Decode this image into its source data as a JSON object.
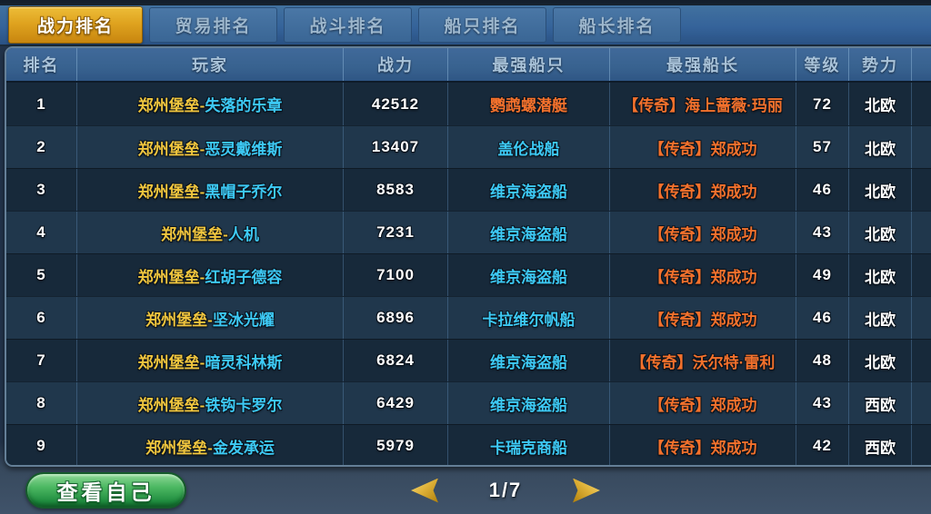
{
  "tabs": [
    {
      "label": "战力排名",
      "active": true
    },
    {
      "label": "贸易排名",
      "active": false
    },
    {
      "label": "战斗排名",
      "active": false
    },
    {
      "label": "船只排名",
      "active": false
    },
    {
      "label": "船长排名",
      "active": false
    }
  ],
  "table": {
    "columns": [
      "排名",
      "玩家",
      "战力",
      "最强船只",
      "最强船长",
      "等级",
      "势力"
    ],
    "rows": [
      {
        "rank": "1",
        "guild": "郑州堡垒-",
        "name": "失落的乐章",
        "power": "42512",
        "ship": "鹦鹉螺潜艇",
        "ship_rarity": "legendary",
        "captain": "【传奇】海上蔷薇·玛丽",
        "level": "72",
        "faction": "北欧"
      },
      {
        "rank": "2",
        "guild": "郑州堡垒-",
        "name": "恶灵戴维斯",
        "power": "13407",
        "ship": "盖伦战船",
        "ship_rarity": "normal",
        "captain": "【传奇】郑成功",
        "level": "57",
        "faction": "北欧"
      },
      {
        "rank": "3",
        "guild": "郑州堡垒-",
        "name": "黑帽子乔尔",
        "power": "8583",
        "ship": "维京海盗船",
        "ship_rarity": "normal",
        "captain": "【传奇】郑成功",
        "level": "46",
        "faction": "北欧"
      },
      {
        "rank": "4",
        "guild": "郑州堡垒-",
        "name": "人机",
        "power": "7231",
        "ship": "维京海盗船",
        "ship_rarity": "normal",
        "captain": "【传奇】郑成功",
        "level": "43",
        "faction": "北欧"
      },
      {
        "rank": "5",
        "guild": "郑州堡垒-",
        "name": "红胡子德容",
        "power": "7100",
        "ship": "维京海盗船",
        "ship_rarity": "normal",
        "captain": "【传奇】郑成功",
        "level": "49",
        "faction": "北欧"
      },
      {
        "rank": "6",
        "guild": "郑州堡垒-",
        "name": "坚冰光耀",
        "power": "6896",
        "ship": "卡拉维尔帆船",
        "ship_rarity": "normal",
        "captain": "【传奇】郑成功",
        "level": "46",
        "faction": "北欧"
      },
      {
        "rank": "7",
        "guild": "郑州堡垒-",
        "name": "暗灵科林斯",
        "power": "6824",
        "ship": "维京海盗船",
        "ship_rarity": "normal",
        "captain": "【传奇】沃尔特·雷利",
        "level": "48",
        "faction": "北欧"
      },
      {
        "rank": "8",
        "guild": "郑州堡垒-",
        "name": "铁钩卡罗尔",
        "power": "6429",
        "ship": "维京海盗船",
        "ship_rarity": "normal",
        "captain": "【传奇】郑成功",
        "level": "43",
        "faction": "西欧"
      },
      {
        "rank": "9",
        "guild": "郑州堡垒-",
        "name": "金发承运",
        "power": "5979",
        "ship": "卡瑞克商船",
        "ship_rarity": "normal",
        "captain": "【传奇】郑成功",
        "level": "42",
        "faction": "西欧"
      }
    ]
  },
  "footer": {
    "view_self_label": "查看自己",
    "page_indicator": "1/7"
  },
  "colors": {
    "accent_gold": "#f1c63e",
    "accent_cyan": "#3dc9f4",
    "accent_orange": "#f3712c",
    "tab_active_bg": "#dfa31f",
    "button_green": "#2e9e4d",
    "row_dark": "#17293a",
    "row_light": "#20374c"
  }
}
